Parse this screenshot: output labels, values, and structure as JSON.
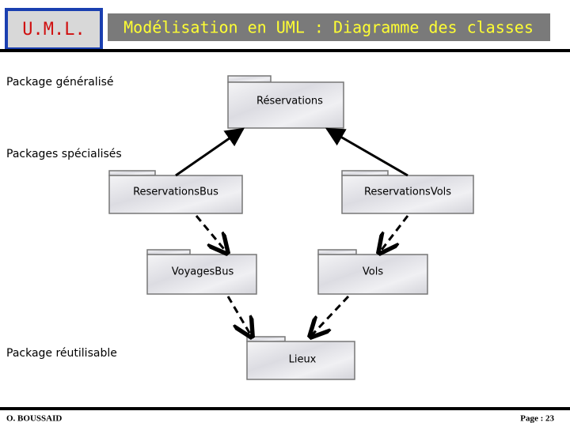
{
  "header": {
    "logo": "U.M.L.",
    "title": "Modélisation en UML : Diagramme des classes"
  },
  "labels": [
    "Package généralisé",
    "Packages spécialisés",
    "Package réutilisable"
  ],
  "packages": [
    {
      "name": "Réservations"
    },
    {
      "name": "ReservationsBus"
    },
    {
      "name": "ReservationsVols"
    },
    {
      "name": "VoyagesBus"
    },
    {
      "name": "Vols"
    },
    {
      "name": "Lieux"
    }
  ],
  "footer": {
    "author": "O. BOUSSAID",
    "page": "Page : 23"
  }
}
